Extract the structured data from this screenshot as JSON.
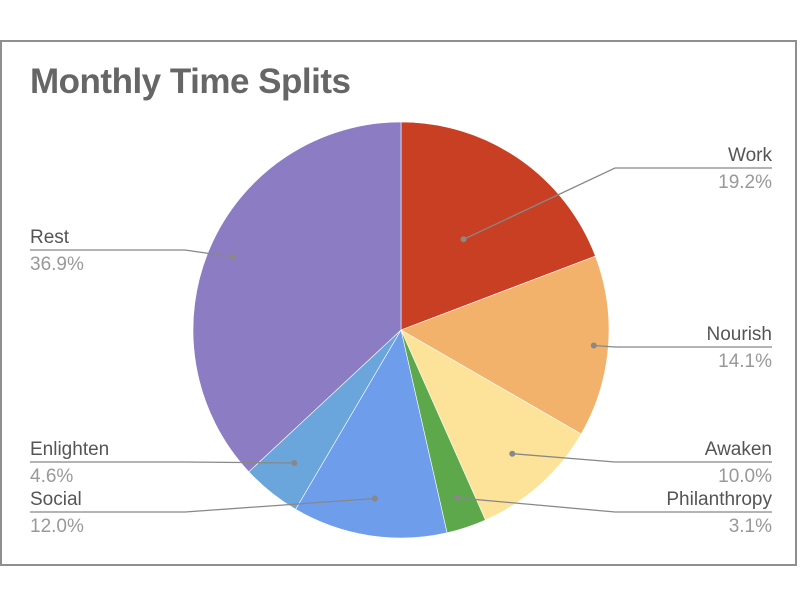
{
  "chart_data": {
    "type": "pie",
    "title": "Monthly Time Splits",
    "slices": [
      {
        "label": "Work",
        "value": 19.2,
        "pct_label": "19.2%",
        "color": "#c93f23"
      },
      {
        "label": "Nourish",
        "value": 14.1,
        "pct_label": "14.1%",
        "color": "#f3b26b"
      },
      {
        "label": "Awaken",
        "value": 10.0,
        "pct_label": "10.0%",
        "color": "#fde399"
      },
      {
        "label": "Philanthropy",
        "value": 3.1,
        "pct_label": "3.1%",
        "color": "#5da84a"
      },
      {
        "label": "Social",
        "value": 12.0,
        "pct_label": "12.0%",
        "color": "#6d9deb"
      },
      {
        "label": "Enlighten",
        "value": 4.6,
        "pct_label": "4.6%",
        "color": "#6aa6dc"
      },
      {
        "label": "Rest",
        "value": 36.9,
        "pct_label": "36.9%",
        "color": "#8c7cc4"
      }
    ],
    "legend": "none",
    "label_position": "outside-with-leader-lines"
  }
}
